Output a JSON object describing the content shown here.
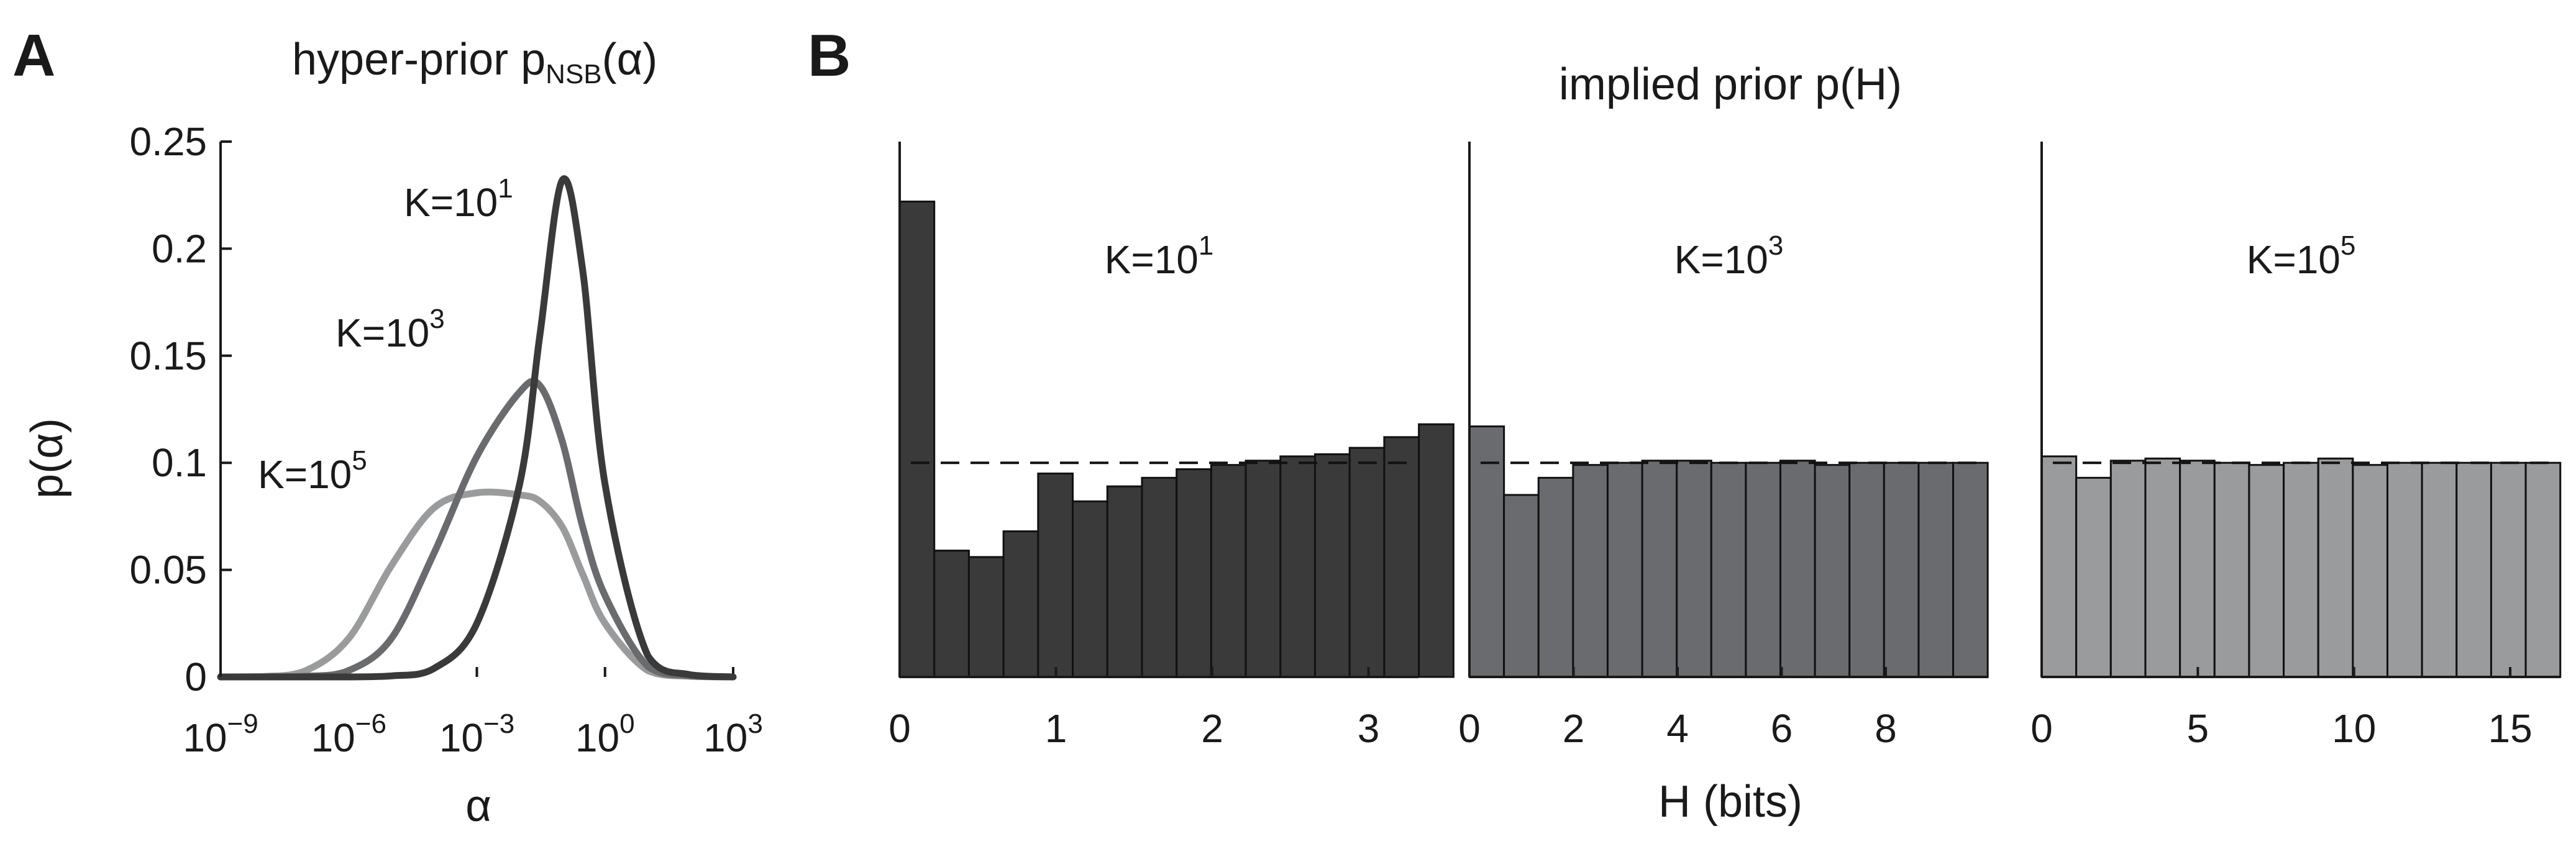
{
  "panel_a": {
    "letter": "A",
    "title": "hyper-prior p",
    "title_sub": "NSB",
    "title_arg": "(α)",
    "xlabel": "α",
    "ylabel": "p(α)",
    "yticks": [
      "0",
      "0.05",
      "0.1",
      "0.15",
      "0.2",
      "0.25"
    ],
    "xticks": [
      {
        "base": "10",
        "exp": "−9"
      },
      {
        "base": "10",
        "exp": "−6"
      },
      {
        "base": "10",
        "exp": "−3"
      },
      {
        "base": "10",
        "exp": "0"
      },
      {
        "base": "10",
        "exp": "3"
      }
    ]
  },
  "panel_b": {
    "letter": "B",
    "title": "implied prior p(H)",
    "xlabel": "H (bits)",
    "sub_xticks": [
      [
        "0",
        "1",
        "2",
        "3"
      ],
      [
        "0",
        "2",
        "4",
        "6",
        "8"
      ],
      [
        "0",
        "5",
        "10",
        "15"
      ]
    ]
  },
  "colors": {
    "k1": "#3a3a3a",
    "k3": "#6a6b6e",
    "k5": "#9a9b9d",
    "axis": "#1a1a1a"
  },
  "chart_data": [
    {
      "type": "line",
      "title": "hyper-prior pNSB(α)",
      "xlabel": "α",
      "ylabel": "p(α)",
      "xscale": "log",
      "xlim": [
        1e-09,
        1000.0
      ],
      "ylim": [
        0,
        0.25
      ],
      "grid": false,
      "x": [
        1e-09,
        1e-08,
        1e-07,
        1e-06,
        1e-05,
        0.0001,
        0.001,
        0.01,
        0.03,
        0.1,
        0.3,
        1,
        10,
        100,
        1000
      ],
      "series": [
        {
          "name": "K=10",
          "name_exp": "1",
          "values": [
            0,
            0,
            0,
            0,
            0.0005,
            0.004,
            0.025,
            0.09,
            0.16,
            0.232,
            0.19,
            0.09,
            0.01,
            0.001,
            0
          ]
        },
        {
          "name": "K=10",
          "name_exp": "3",
          "values": [
            0,
            0,
            0.0003,
            0.003,
            0.018,
            0.058,
            0.103,
            0.133,
            0.136,
            0.11,
            0.07,
            0.038,
            0.005,
            0.0005,
            0
          ]
        },
        {
          "name": "K=10",
          "name_exp": "5",
          "values": [
            0,
            0.0002,
            0.003,
            0.018,
            0.052,
            0.079,
            0.086,
            0.085,
            0.082,
            0.07,
            0.048,
            0.025,
            0.003,
            0.0003,
            0
          ]
        }
      ]
    },
    {
      "type": "bar",
      "title": "implied prior p(H)",
      "label": "K=10",
      "label_exp": "1",
      "xlabel": "H (bits)",
      "xlim": [
        0,
        3.32
      ],
      "ylim": [
        0,
        0.25
      ],
      "bin_width": 0.2215,
      "reference_line": 0.1,
      "values": [
        0.222,
        0.059,
        0.056,
        0.068,
        0.095,
        0.082,
        0.089,
        0.093,
        0.097,
        0.099,
        0.101,
        0.103,
        0.104,
        0.107,
        0.112,
        0.118
      ]
    },
    {
      "type": "bar",
      "title": "implied prior p(H)",
      "label": "K=10",
      "label_exp": "3",
      "xlabel": "H (bits)",
      "xlim": [
        0,
        9.97
      ],
      "ylim": [
        0,
        0.25
      ],
      "bin_width": 0.664,
      "reference_line": 0.1,
      "values": [
        0.117,
        0.085,
        0.093,
        0.099,
        0.1,
        0.101,
        0.101,
        0.1,
        0.1,
        0.101,
        0.099,
        0.1,
        0.1,
        0.1,
        0.1
      ]
    },
    {
      "type": "bar",
      "title": "implied prior p(H)",
      "label": "K=10",
      "label_exp": "5",
      "xlabel": "H (bits)",
      "xlim": [
        0,
        16.61
      ],
      "ylim": [
        0,
        0.25
      ],
      "bin_width": 1.107,
      "reference_line": 0.1,
      "values": [
        0.103,
        0.093,
        0.101,
        0.102,
        0.101,
        0.1,
        0.099,
        0.1,
        0.102,
        0.099,
        0.1,
        0.1,
        0.1,
        0.1,
        0.1
      ]
    }
  ]
}
